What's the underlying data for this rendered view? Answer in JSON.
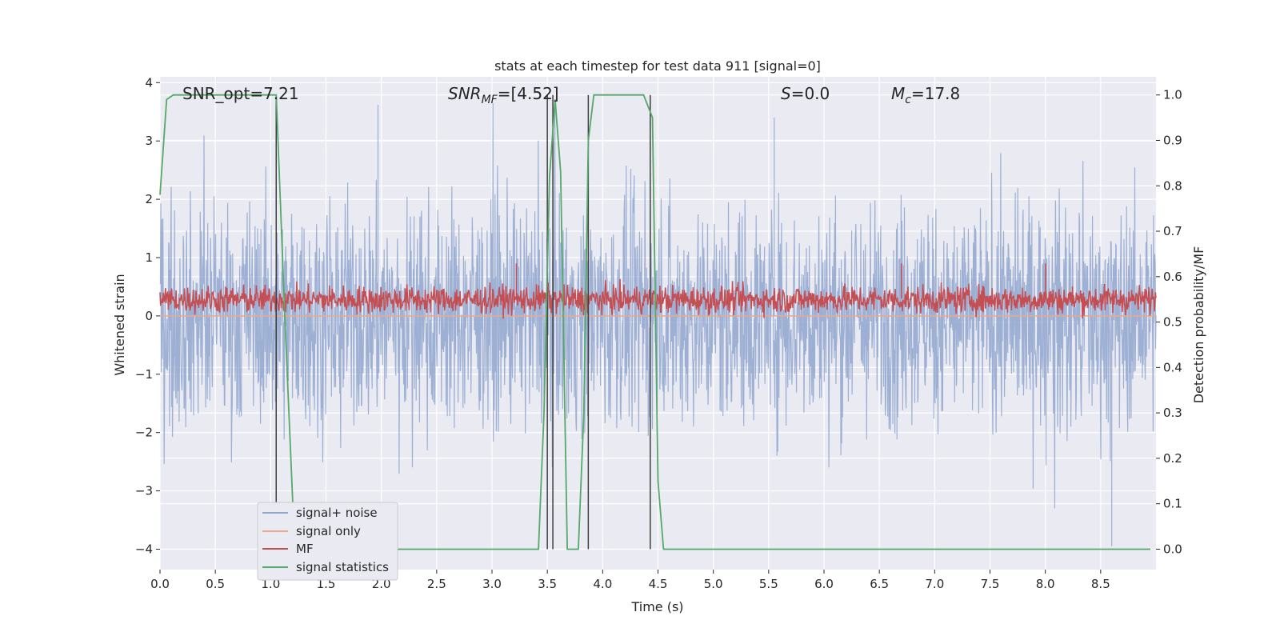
{
  "chart_data": {
    "type": "line",
    "title": "stats at each timestep for test data 911 [signal=0]",
    "xlabel": "Time (s)",
    "ylabel_left": "Whitened strain",
    "ylabel_right": "Detection probability/MF",
    "xlim": [
      0.0,
      9.0
    ],
    "ylim_left": [
      -4.35,
      4.1
    ],
    "ylim_right": [
      -0.045,
      1.04
    ],
    "x_ticks": [
      "0.0",
      "0.5",
      "1.0",
      "1.5",
      "2.0",
      "2.5",
      "3.0",
      "3.5",
      "4.0",
      "4.5",
      "5.0",
      "5.5",
      "6.0",
      "6.5",
      "7.0",
      "7.5",
      "8.0",
      "8.5"
    ],
    "y_ticks_left": [
      "−4",
      "−3",
      "−2",
      "−1",
      "0",
      "1",
      "2",
      "3",
      "4"
    ],
    "y_ticks_right": [
      "0.0",
      "0.1",
      "0.2",
      "0.3",
      "0.4",
      "0.5",
      "0.6",
      "0.7",
      "0.8",
      "0.9",
      "1.0"
    ],
    "grid": true,
    "legend_position": "lower-left",
    "annotations": {
      "snr_opt": "SNR_opt=7.21",
      "snr_mf_math": "SNR",
      "snr_mf_sub": "MF",
      "snr_mf_value": "=[4.52]",
      "s_math": "S",
      "s_value": "=0.0",
      "mc_math": "M",
      "mc_sub": "c",
      "mc_value": "=17.8"
    },
    "series": [
      {
        "name": "signal+ noise",
        "color": "#8fa6cf",
        "axis": "left",
        "description_points": {
          "band_min": -3.3,
          "band_max": 3.65,
          "typical_range": [
            -2.0,
            2.0
          ],
          "notable_peaks": [
            [
              1.97,
              3.62
            ],
            [
              5.55,
              3.4
            ],
            [
              8.6,
              -3.95
            ]
          ]
        }
      },
      {
        "name": "signal only",
        "color": "#e8a98e",
        "axis": "left",
        "values": [
          [
            0.0,
            0.0
          ],
          [
            9.0,
            0.0
          ]
        ]
      },
      {
        "name": "MF",
        "color": "#c44e52",
        "axis": "left",
        "description_points": {
          "typical_range": [
            -0.05,
            0.6
          ],
          "notable_peaks": [
            [
              3.22,
              0.9
            ],
            [
              6.7,
              0.9
            ],
            [
              8.0,
              0.9
            ]
          ]
        }
      },
      {
        "name": "signal statistics",
        "color": "#55a868",
        "axis": "right",
        "values": [
          [
            0.0,
            0.78
          ],
          [
            0.06,
            0.99
          ],
          [
            0.12,
            1.0
          ],
          [
            1.05,
            1.0
          ],
          [
            1.13,
            0.5
          ],
          [
            1.2,
            0.1
          ],
          [
            1.25,
            0.0
          ],
          [
            3.42,
            0.0
          ],
          [
            3.47,
            0.3
          ],
          [
            3.52,
            0.82
          ],
          [
            3.57,
            0.99
          ],
          [
            3.62,
            0.83
          ],
          [
            3.68,
            0.0
          ],
          [
            3.78,
            0.0
          ],
          [
            3.83,
            0.3
          ],
          [
            3.87,
            0.9
          ],
          [
            3.92,
            1.0
          ],
          [
            4.37,
            1.0
          ],
          [
            4.45,
            0.95
          ],
          [
            4.5,
            0.15
          ],
          [
            4.55,
            0.0
          ],
          [
            8.95,
            0.0
          ]
        ]
      }
    ],
    "vertical_markers": [
      1.05,
      3.5,
      3.55,
      3.87,
      4.43
    ]
  },
  "legend": {
    "items": [
      {
        "label": "signal+ noise",
        "color": "#8fa6cf"
      },
      {
        "label": "signal only",
        "color": "#e8a98e"
      },
      {
        "label": "MF",
        "color": "#c44e52"
      },
      {
        "label": "signal statistics",
        "color": "#55a868"
      }
    ]
  },
  "colors": {
    "plot_background": "#eaeaf2",
    "grid": "#ffffff",
    "vertical_marker": "#404040"
  }
}
